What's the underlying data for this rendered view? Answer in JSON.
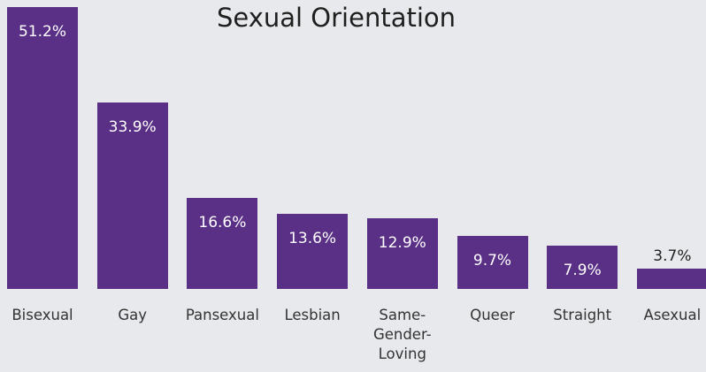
{
  "chart_data": {
    "type": "bar",
    "title": "Sexual Orientation",
    "categories": [
      "Bisexual",
      "Gay",
      "Pansexual",
      "Lesbian",
      "Same-Gender-Loving",
      "Queer",
      "Straight",
      "Asexual"
    ],
    "values": [
      51.2,
      33.9,
      16.6,
      13.6,
      12.9,
      9.7,
      7.9,
      3.7
    ],
    "value_labels": [
      "51.2%",
      "33.9%",
      "16.6%",
      "13.6%",
      "12.9%",
      "9.7%",
      "7.9%",
      "3.7%"
    ],
    "color": "#5a2f86"
  }
}
